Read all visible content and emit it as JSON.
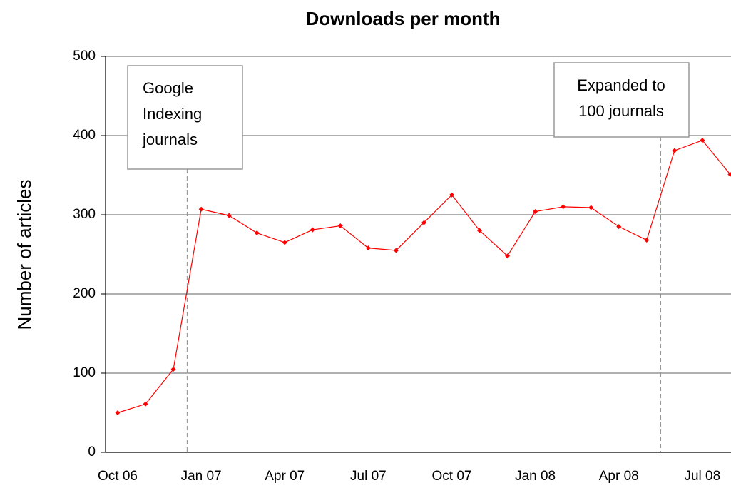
{
  "chart_data": {
    "type": "line",
    "title": "Downloads per month",
    "y_label": "Number of articles",
    "categories": [
      "Oct 06",
      null,
      null,
      "Jan 07",
      null,
      null,
      "Apr 07",
      null,
      null,
      "Jul 07",
      null,
      null,
      "Oct 07",
      null,
      null,
      "Jan 08",
      null,
      null,
      "Apr 08",
      null,
      null,
      "Jul 08",
      null
    ],
    "series": [
      {
        "name": "Downloads",
        "color": "#ff0000",
        "values": [
          50,
          61,
          105,
          307,
          299,
          277,
          265,
          281,
          286,
          258,
          255,
          290,
          325,
          280,
          248,
          304,
          310,
          309,
          285,
          268,
          381,
          394,
          351
        ]
      }
    ],
    "ylim": [
      0,
      500
    ],
    "yticks": [
      0,
      100,
      200,
      300,
      400,
      500
    ],
    "grid": true,
    "annotations": [
      {
        "lines": [
          "Google",
          "Indexing",
          "journals"
        ]
      },
      {
        "lines": [
          "Expanded to",
          "100 journals"
        ]
      }
    ]
  }
}
